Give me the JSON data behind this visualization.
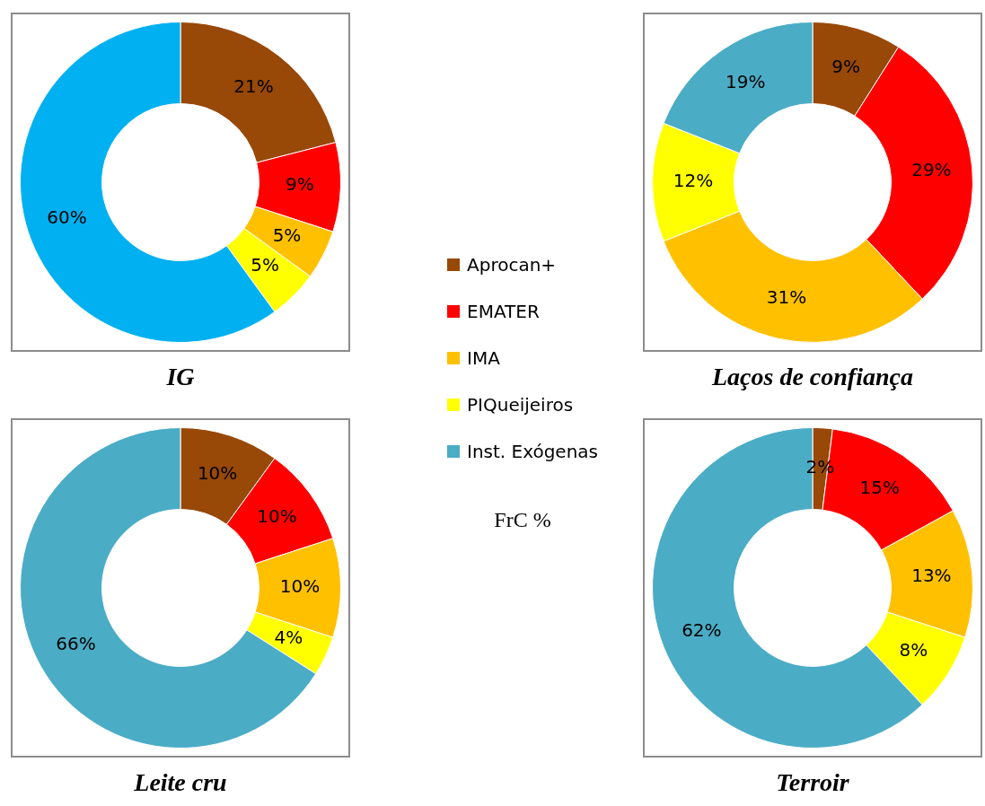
{
  "chart_data": [
    {
      "type": "donut",
      "title": "IG",
      "categories": [
        null,
        null,
        null,
        null,
        null
      ],
      "values": [
        21,
        9,
        5,
        5,
        60
      ],
      "colors": [
        "#984807",
        "#ff0000",
        "#ffc000",
        "#ffff00",
        "#00b0f0"
      ],
      "value_labels": [
        "21%",
        "9%",
        "5%",
        "5%",
        "60%"
      ]
    },
    {
      "type": "donut",
      "title": "Laços de confiança",
      "categories": [
        "Aprocan+",
        "EMATER",
        "IMA",
        "PIQueijeiros",
        "Inst. Exógenas"
      ],
      "values": [
        9,
        29,
        31,
        12,
        19
      ],
      "colors": [
        "#984807",
        "#ff0000",
        "#ffc000",
        "#ffff00",
        "#4bacc6"
      ],
      "value_labels": [
        "9%",
        "29%",
        "31%",
        "12%",
        "19%"
      ],
      "legend": "left",
      "annotations": [
        "FrC %"
      ]
    },
    {
      "type": "donut",
      "title": "Leite cru",
      "categories": [
        null,
        null,
        null,
        null,
        null
      ],
      "values": [
        10,
        10,
        10,
        4,
        66
      ],
      "colors": [
        "#984807",
        "#ff0000",
        "#ffc000",
        "#ffff00",
        "#4bacc6"
      ],
      "value_labels": [
        "10%",
        "10%",
        "10%",
        "4%",
        "66%"
      ]
    },
    {
      "type": "donut",
      "title": "Terroir",
      "categories": [
        null,
        null,
        null,
        null,
        null
      ],
      "values": [
        2,
        15,
        13,
        8,
        62
      ],
      "colors": [
        "#984807",
        "#ff0000",
        "#ffc000",
        "#ffff00",
        "#4bacc6"
      ],
      "value_labels": [
        "2%",
        "15%",
        "13%",
        "8%",
        "62%"
      ]
    }
  ]
}
